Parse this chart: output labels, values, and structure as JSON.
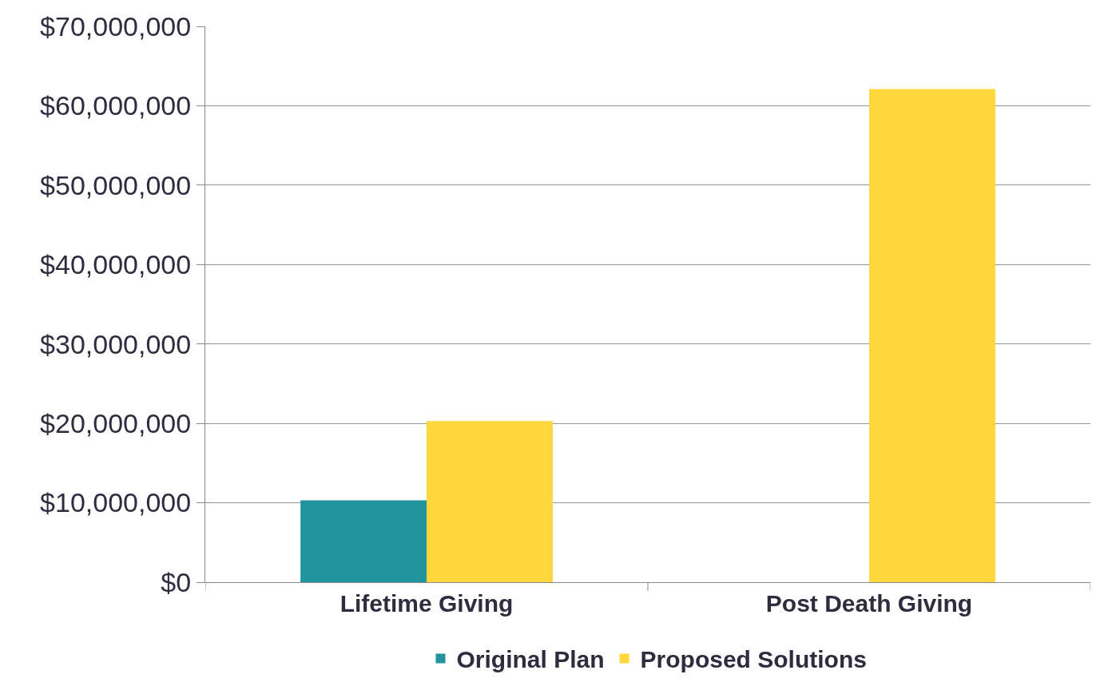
{
  "chart_data": {
    "type": "bar",
    "categories": [
      "Lifetime Giving",
      "Post Death Giving"
    ],
    "series": [
      {
        "name": "Original Plan",
        "color": "#21949e",
        "values": [
          10300000,
          0
        ]
      },
      {
        "name": "Proposed Solutions",
        "color": "#fdd73c",
        "values": [
          20300000,
          62100000
        ]
      }
    ],
    "ylim": [
      0,
      70000000
    ],
    "yticks": [
      {
        "value": 0,
        "label": "$0"
      },
      {
        "value": 10000000,
        "label": "$10,000,000"
      },
      {
        "value": 20000000,
        "label": "$20,000,000"
      },
      {
        "value": 30000000,
        "label": "$30,000,000"
      },
      {
        "value": 40000000,
        "label": "$40,000,000"
      },
      {
        "value": 50000000,
        "label": "$50,000,000"
      },
      {
        "value": 60000000,
        "label": "$60,000,000"
      },
      {
        "value": 70000000,
        "label": "$70,000,000"
      }
    ],
    "grid": "y",
    "legend": "bottom"
  }
}
